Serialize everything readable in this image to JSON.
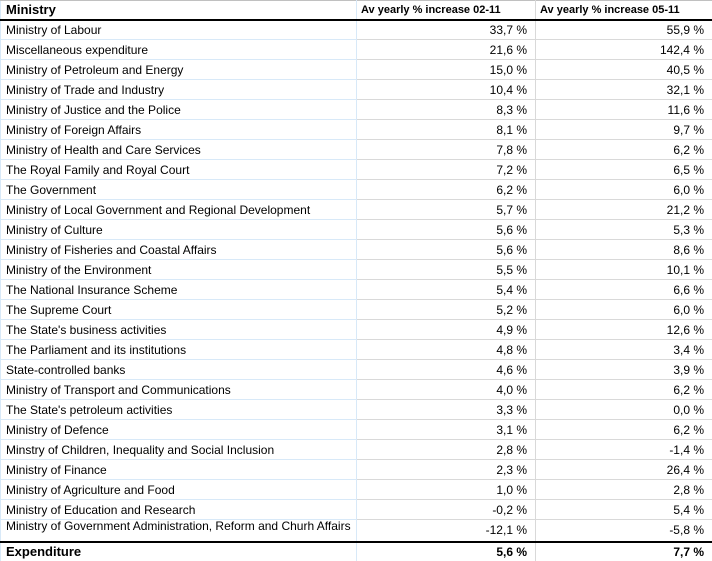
{
  "header": {
    "ministry": "Ministry",
    "col_02_11": "Av yearly % increase 02-11",
    "col_05_11": "Av yearly % increase 05-11"
  },
  "rows": [
    {
      "name": "Ministry of Labour",
      "inc_02_11": "33,7 %",
      "inc_05_11": "55,9 %"
    },
    {
      "name": "Miscellaneous expenditure",
      "inc_02_11": "21,6 %",
      "inc_05_11": "142,4 %"
    },
    {
      "name": "Ministry of Petroleum and Energy",
      "inc_02_11": "15,0 %",
      "inc_05_11": "40,5 %"
    },
    {
      "name": "Ministry of Trade and Industry",
      "inc_02_11": "10,4 %",
      "inc_05_11": "32,1 %"
    },
    {
      "name": "Ministry of Justice and the Police",
      "inc_02_11": "8,3 %",
      "inc_05_11": "11,6 %"
    },
    {
      "name": "Ministry of Foreign Affairs",
      "inc_02_11": "8,1 %",
      "inc_05_11": "9,7 %"
    },
    {
      "name": "Ministry of Health and Care Services",
      "inc_02_11": "7,8 %",
      "inc_05_11": "6,2 %"
    },
    {
      "name": "The Royal Family and Royal Court",
      "inc_02_11": "7,2 %",
      "inc_05_11": "6,5 %"
    },
    {
      "name": "The Government",
      "inc_02_11": "6,2 %",
      "inc_05_11": "6,0 %"
    },
    {
      "name": "Ministry of Local Government and Regional Development",
      "inc_02_11": "5,7 %",
      "inc_05_11": "21,2 %"
    },
    {
      "name": "Ministry of Culture",
      "inc_02_11": "5,6 %",
      "inc_05_11": "5,3 %"
    },
    {
      "name": "Ministry of Fisheries and Coastal Affairs",
      "inc_02_11": "5,6 %",
      "inc_05_11": "8,6 %"
    },
    {
      "name": "Ministry of the Environment",
      "inc_02_11": "5,5 %",
      "inc_05_11": "10,1 %"
    },
    {
      "name": "The National Insurance Scheme",
      "inc_02_11": "5,4 %",
      "inc_05_11": "6,6 %"
    },
    {
      "name": "The Supreme Court",
      "inc_02_11": "5,2 %",
      "inc_05_11": "6,0 %"
    },
    {
      "name": "The State's business activities",
      "inc_02_11": "4,9 %",
      "inc_05_11": "12,6 %"
    },
    {
      "name": "The Parliament and its institutions",
      "inc_02_11": "4,8 %",
      "inc_05_11": "3,4 %"
    },
    {
      "name": "State-controlled banks",
      "inc_02_11": "4,6 %",
      "inc_05_11": "3,9 %"
    },
    {
      "name": "Ministry of Transport and Communications",
      "inc_02_11": "4,0 %",
      "inc_05_11": "6,2 %"
    },
    {
      "name": "The State's petroleum activities",
      "inc_02_11": "3,3 %",
      "inc_05_11": "0,0 %"
    },
    {
      "name": "Ministry of Defence",
      "inc_02_11": "3,1 %",
      "inc_05_11": "6,2 %"
    },
    {
      "name": "Minstry of Children, Inequality and Social Inclusion",
      "inc_02_11": "2,8 %",
      "inc_05_11": "-1,4 %"
    },
    {
      "name": "Ministry of Finance",
      "inc_02_11": "2,3 %",
      "inc_05_11": "26,4 %"
    },
    {
      "name": "Ministry of Agriculture and Food",
      "inc_02_11": "1,0 %",
      "inc_05_11": "2,8 %"
    },
    {
      "name": "Ministry of Education and Research",
      "inc_02_11": "-0,2 %",
      "inc_05_11": "5,4 %"
    },
    {
      "name": "Ministry of Government Administration, Reform and Churh Affairs",
      "inc_02_11": "-12,1 %",
      "inc_05_11": "-5,8 %",
      "two_line": true
    }
  ],
  "total_row": {
    "name": "Expenditure",
    "inc_02_11": "5,6 %",
    "inc_05_11": "7,7 %"
  },
  "colors": {
    "background": "#ffffff",
    "text": "#000000",
    "grid_blue": "#d8e9f8",
    "grid_grey": "#d9d9d9",
    "outer_grey": "#c0c0c0",
    "black_border": "#000000"
  }
}
